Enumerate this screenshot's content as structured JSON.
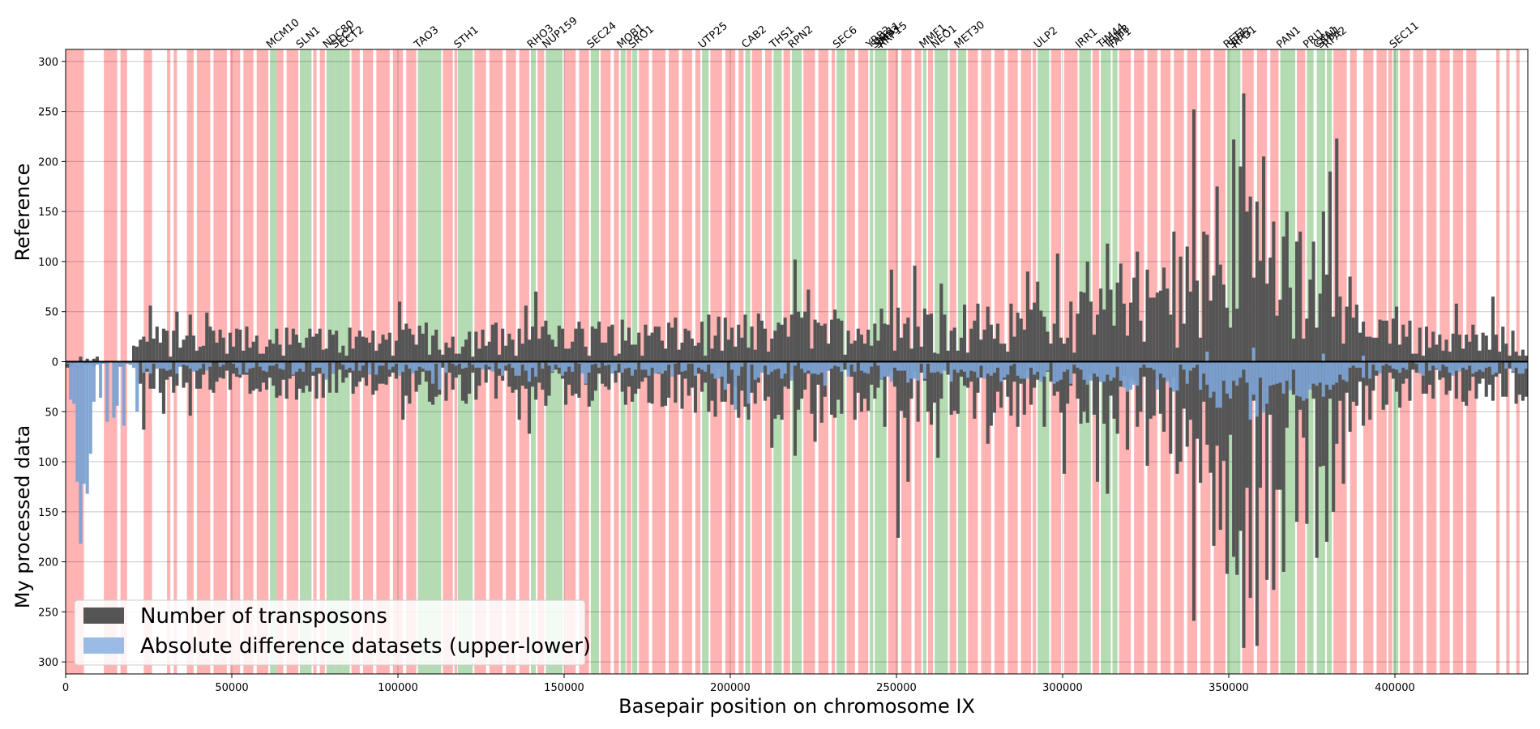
{
  "chart_data": {
    "type": "bar",
    "xlabel": "Basepair position on chromosome IX",
    "ylabel_upper": "Reference",
    "ylabel_lower": "My processed data",
    "xlim": [
      0,
      440000
    ],
    "ylim": [
      -312,
      312
    ],
    "x_ticks": [
      0,
      50000,
      100000,
      150000,
      200000,
      250000,
      300000,
      350000,
      400000
    ],
    "x_tick_labels": [
      "0",
      "50000",
      "100000",
      "150000",
      "200000",
      "250000",
      "300000",
      "350000",
      "400000"
    ],
    "y_ticks_upper": [
      0,
      50,
      100,
      150,
      200,
      250,
      300
    ],
    "y_tick_labels_upper": [
      "0",
      "50",
      "100",
      "150",
      "200",
      "250",
      "300"
    ],
    "y_ticks_lower": [
      50,
      100,
      150,
      200,
      250,
      300
    ],
    "y_tick_labels_lower": [
      "50",
      "100",
      "150",
      "200",
      "250",
      "300"
    ],
    "grid": true,
    "legend": {
      "placement": "lower-left",
      "entries": [
        {
          "label": "Number of transposons",
          "color": "#555555"
        },
        {
          "label": "Absolute difference datasets (upper-lower)",
          "color": "#99bbe6"
        }
      ]
    },
    "colors": {
      "transposons": "#555555",
      "difference": "#7ca2d2",
      "essential_region": "#b4dbb2",
      "nonessential_region": "#ffb3b3"
    },
    "bin_width": 1000,
    "essential_genes": [
      {
        "name": "MCM10",
        "start": 61500,
        "end": 63500
      },
      {
        "name": "SLN1",
        "start": 70500,
        "end": 74000
      },
      {
        "name": "NDC80",
        "start": 78500,
        "end": 81000
      },
      {
        "name": "SEC7",
        "start": 81000,
        "end": 83500
      },
      {
        "name": "CCT2",
        "start": 83500,
        "end": 85500
      },
      {
        "name": "TAO3",
        "start": 106000,
        "end": 113000
      },
      {
        "name": "STH1",
        "start": 118000,
        "end": 122500
      },
      {
        "name": "RHO3",
        "start": 140000,
        "end": 141500
      },
      {
        "name": "NUP159",
        "start": 144500,
        "end": 149500
      },
      {
        "name": "SEC24",
        "start": 158000,
        "end": 160500
      },
      {
        "name": "MOB1",
        "start": 167000,
        "end": 168500
      },
      {
        "name": "SRO1",
        "start": 170500,
        "end": 172000
      },
      {
        "name": "UTP25",
        "start": 191500,
        "end": 193500
      },
      {
        "name": "CAB2",
        "start": 204500,
        "end": 206000
      },
      {
        "name": "THS1",
        "start": 213000,
        "end": 215500
      },
      {
        "name": "RPN2",
        "start": 218500,
        "end": 221500
      },
      {
        "name": "SEC6",
        "start": 232000,
        "end": 234500
      },
      {
        "name": "YRB2",
        "start": 242000,
        "end": 243000
      },
      {
        "name": "SNF11",
        "start": 243500,
        "end": 244500
      },
      {
        "name": "SMP3",
        "start": 244500,
        "end": 245500
      },
      {
        "name": "RRP15",
        "start": 245500,
        "end": 247000
      },
      {
        "name": "MMF1",
        "start": 258000,
        "end": 259000
      },
      {
        "name": "NEO1",
        "start": 261500,
        "end": 265500
      },
      {
        "name": "MET30",
        "start": 268500,
        "end": 271000
      },
      {
        "name": "ULP2",
        "start": 292500,
        "end": 296000
      },
      {
        "name": "IRR1",
        "start": 305000,
        "end": 308500
      },
      {
        "name": "TIM44",
        "start": 311500,
        "end": 313500
      },
      {
        "name": "TRM8",
        "start": 313500,
        "end": 314500
      },
      {
        "name": "FAP1",
        "start": 315000,
        "end": 316500
      },
      {
        "name": "RFT1",
        "start": 349500,
        "end": 351000
      },
      {
        "name": "SPT2",
        "start": 351000,
        "end": 352000
      },
      {
        "name": "RPD1",
        "start": 352000,
        "end": 353500
      },
      {
        "name": "PAN1",
        "start": 365500,
        "end": 370000
      },
      {
        "name": "PRI1",
        "start": 373500,
        "end": 375500
      },
      {
        "name": "CKA1",
        "start": 376500,
        "end": 377500
      },
      {
        "name": "STH1",
        "start": 377500,
        "end": 379000
      },
      {
        "name": "RPA2",
        "start": 379500,
        "end": 381000
      },
      {
        "name": "SEC11",
        "start": 399500,
        "end": 401000
      }
    ],
    "nonessential_regions": [
      [
        0,
        5500
      ],
      [
        11500,
        15500
      ],
      [
        16500,
        18500
      ],
      [
        23500,
        26000
      ],
      [
        30500,
        31500
      ],
      [
        32500,
        33500
      ],
      [
        36500,
        38500
      ],
      [
        39500,
        43500
      ],
      [
        44500,
        48500
      ],
      [
        49500,
        52500
      ],
      [
        53500,
        56500
      ],
      [
        57500,
        61000
      ],
      [
        63500,
        65500
      ],
      [
        66500,
        70000
      ],
      [
        74500,
        75500
      ],
      [
        76500,
        78000
      ],
      [
        86000,
        88500
      ],
      [
        89500,
        92500
      ],
      [
        93500,
        97500
      ],
      [
        98500,
        101500
      ],
      [
        102500,
        105500
      ],
      [
        113500,
        116500
      ],
      [
        117000,
        117800
      ],
      [
        123000,
        126500
      ],
      [
        127500,
        131500
      ],
      [
        132500,
        135500
      ],
      [
        136500,
        139500
      ],
      [
        142000,
        144000
      ],
      [
        150000,
        153500
      ],
      [
        154500,
        157500
      ],
      [
        161000,
        164000
      ],
      [
        165000,
        166500
      ],
      [
        168800,
        170200
      ],
      [
        172500,
        175500
      ],
      [
        176500,
        180500
      ],
      [
        181500,
        184500
      ],
      [
        185500,
        188500
      ],
      [
        189500,
        191000
      ],
      [
        194000,
        197500
      ],
      [
        198500,
        201500
      ],
      [
        202500,
        204000
      ],
      [
        206500,
        209500
      ],
      [
        210500,
        212500
      ],
      [
        216000,
        218000
      ],
      [
        222000,
        225500
      ],
      [
        226500,
        229500
      ],
      [
        230500,
        231500
      ],
      [
        235000,
        237500
      ],
      [
        238500,
        241500
      ],
      [
        247500,
        250500
      ],
      [
        251500,
        254500
      ],
      [
        255500,
        257500
      ],
      [
        259500,
        261000
      ],
      [
        266000,
        268000
      ],
      [
        271500,
        274500
      ],
      [
        275500,
        278500
      ],
      [
        279500,
        282500
      ],
      [
        283500,
        286500
      ],
      [
        287500,
        290500
      ],
      [
        291000,
        292000
      ],
      [
        296500,
        299500
      ],
      [
        300500,
        304500
      ],
      [
        309000,
        311000
      ],
      [
        317000,
        320500
      ],
      [
        321500,
        324500
      ],
      [
        325500,
        328500
      ],
      [
        329500,
        332500
      ],
      [
        333500,
        336500
      ],
      [
        337500,
        340500
      ],
      [
        341500,
        344500
      ],
      [
        345500,
        349000
      ],
      [
        354000,
        357500
      ],
      [
        358500,
        361500
      ],
      [
        362500,
        365000
      ],
      [
        370500,
        373000
      ],
      [
        381500,
        385500
      ],
      [
        386500,
        388500
      ],
      [
        390500,
        393500
      ],
      [
        394500,
        397500
      ],
      [
        398000,
        399200
      ],
      [
        401500,
        404500
      ],
      [
        405500,
        408500
      ],
      [
        409500,
        412500
      ],
      [
        413500,
        416500
      ],
      [
        417500,
        420500
      ],
      [
        421500,
        424500
      ],
      [
        430500,
        431500
      ],
      [
        433500,
        434500
      ],
      [
        436500,
        437500
      ]
    ],
    "envelope": [
      [
        0,
        4,
        8
      ],
      [
        20000,
        12,
        18
      ],
      [
        25000,
        30,
        30
      ],
      [
        60000,
        28,
        30
      ],
      [
        90000,
        30,
        32
      ],
      [
        120000,
        32,
        36
      ],
      [
        150000,
        34,
        36
      ],
      [
        180000,
        34,
        40
      ],
      [
        200000,
        40,
        46
      ],
      [
        220000,
        44,
        50
      ],
      [
        240000,
        46,
        54
      ],
      [
        260000,
        50,
        56
      ],
      [
        280000,
        48,
        52
      ],
      [
        300000,
        52,
        58
      ],
      [
        315000,
        64,
        68
      ],
      [
        330000,
        80,
        82
      ],
      [
        345000,
        110,
        110
      ],
      [
        355000,
        140,
        150
      ],
      [
        365000,
        110,
        118
      ],
      [
        375000,
        90,
        96
      ],
      [
        385000,
        60,
        66
      ],
      [
        395000,
        36,
        42
      ],
      [
        420000,
        32,
        36
      ],
      [
        440000,
        30,
        34
      ]
    ],
    "upper_peaks": [
      [
        25500,
        56
      ],
      [
        33500,
        50
      ],
      [
        37500,
        47
      ],
      [
        42500,
        49
      ],
      [
        100500,
        60
      ],
      [
        138500,
        56
      ],
      [
        141000,
        70
      ],
      [
        219500,
        102
      ],
      [
        223500,
        72
      ],
      [
        248500,
        92
      ],
      [
        255500,
        96
      ],
      [
        263500,
        78
      ],
      [
        289500,
        90
      ],
      [
        292500,
        80
      ],
      [
        298500,
        108
      ],
      [
        307500,
        100
      ],
      [
        313500,
        118
      ],
      [
        317500,
        98
      ],
      [
        322500,
        110
      ],
      [
        333500,
        130
      ],
      [
        337500,
        115
      ],
      [
        339500,
        252
      ],
      [
        342500,
        130
      ],
      [
        346500,
        175
      ],
      [
        351500,
        222
      ],
      [
        353500,
        195
      ],
      [
        354500,
        268
      ],
      [
        356500,
        165
      ],
      [
        358500,
        160
      ],
      [
        360500,
        205
      ],
      [
        363500,
        140
      ],
      [
        367500,
        150
      ],
      [
        371500,
        130
      ],
      [
        375500,
        120
      ],
      [
        378500,
        150
      ],
      [
        380500,
        190
      ],
      [
        382500,
        223
      ],
      [
        386500,
        85
      ],
      [
        400500,
        55
      ],
      [
        418500,
        58
      ],
      [
        429500,
        65
      ]
    ],
    "lower_peaks": [
      [
        23500,
        68
      ],
      [
        29500,
        52
      ],
      [
        37500,
        54
      ],
      [
        101500,
        58
      ],
      [
        136500,
        58
      ],
      [
        139500,
        72
      ],
      [
        212500,
        86
      ],
      [
        219500,
        94
      ],
      [
        225500,
        80
      ],
      [
        250500,
        176
      ],
      [
        253500,
        120
      ],
      [
        262500,
        96
      ],
      [
        277500,
        82
      ],
      [
        300500,
        112
      ],
      [
        310500,
        120
      ],
      [
        313500,
        132
      ],
      [
        325500,
        104
      ],
      [
        334500,
        112
      ],
      [
        339500,
        259
      ],
      [
        345500,
        184
      ],
      [
        347500,
        168
      ],
      [
        349500,
        212
      ],
      [
        351500,
        195
      ],
      [
        352500,
        213
      ],
      [
        354500,
        286
      ],
      [
        356500,
        236
      ],
      [
        358500,
        284
      ],
      [
        361500,
        218
      ],
      [
        363500,
        228
      ],
      [
        366500,
        210
      ],
      [
        370500,
        160
      ],
      [
        373500,
        162
      ],
      [
        376500,
        196
      ],
      [
        379500,
        180
      ],
      [
        381500,
        150
      ],
      [
        384500,
        122
      ],
      [
        436500,
        42
      ]
    ],
    "difference_peaks": [
      [
        1500,
        38
      ],
      [
        2500,
        42
      ],
      [
        3500,
        120
      ],
      [
        4500,
        182
      ],
      [
        5500,
        122
      ],
      [
        6500,
        132
      ],
      [
        7500,
        92
      ],
      [
        8500,
        40
      ],
      [
        10500,
        36
      ],
      [
        12500,
        60
      ],
      [
        14500,
        56
      ],
      [
        15500,
        44
      ],
      [
        17500,
        64
      ],
      [
        21500,
        50
      ],
      [
        78500,
        18
      ],
      [
        110500,
        22
      ],
      [
        112500,
        28
      ],
      [
        139500,
        20
      ],
      [
        156500,
        22
      ],
      [
        198500,
        28
      ],
      [
        201500,
        48
      ],
      [
        205500,
        42
      ],
      [
        228500,
        24
      ],
      [
        245500,
        18
      ],
      [
        282500,
        16
      ],
      [
        297500,
        22
      ],
      [
        312500,
        20
      ],
      [
        342500,
        12
      ],
      [
        364500,
        22
      ]
    ],
    "difference_positive_peaks": [
      [
        343500,
        10
      ],
      [
        357500,
        14
      ],
      [
        378500,
        8
      ],
      [
        390500,
        6
      ]
    ]
  }
}
